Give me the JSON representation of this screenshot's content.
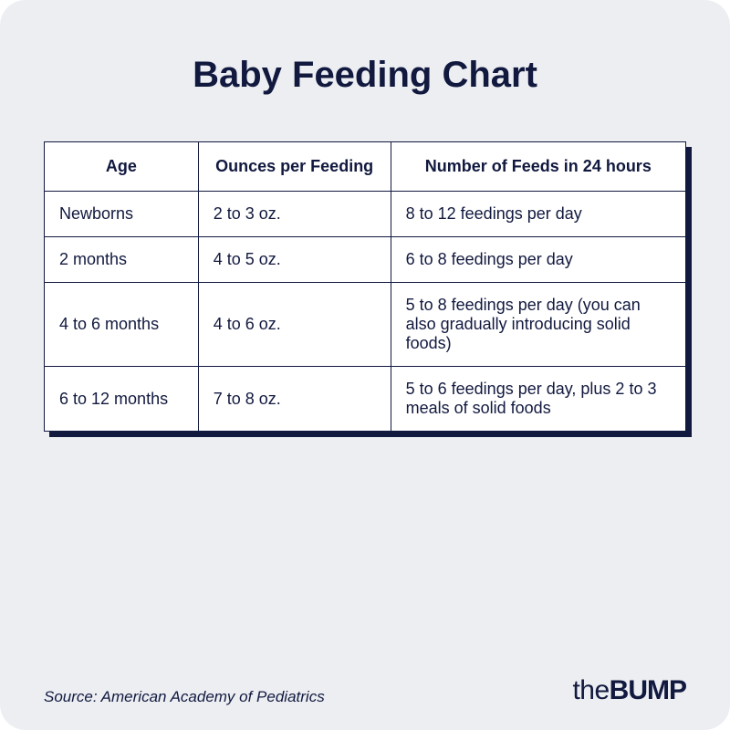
{
  "title": "Baby Feeding Chart",
  "table": {
    "columns": [
      "Age",
      "Ounces per Feeding",
      "Number of Feeds in 24 hours"
    ],
    "rows": [
      [
        "Newborns",
        "2 to 3 oz.",
        "8 to 12 feedings per day"
      ],
      [
        "2 months",
        "4 to 5 oz.",
        "6 to 8 feedings per day"
      ],
      [
        "4 to 6 months",
        "4 to 6 oz.",
        "5 to 8 feedings per day (you can also gradually introducing solid foods)"
      ],
      [
        "6 to 12 months",
        "7 to 8 oz.",
        "5 to 6 feedings per day, plus 2 to 3 meals of solid foods"
      ]
    ],
    "column_widths": [
      "24%",
      "30%",
      "46%"
    ],
    "border_color": "#12193f",
    "background_color": "#ffffff",
    "header_fontsize": 18,
    "cell_fontsize": 18,
    "text_color": "#12193f",
    "shadow_color": "#12193f"
  },
  "card_background": "#eceef2",
  "source": "Source: American Academy of Pediatrics",
  "logo": {
    "prefix": "the",
    "main": "BUMP"
  }
}
